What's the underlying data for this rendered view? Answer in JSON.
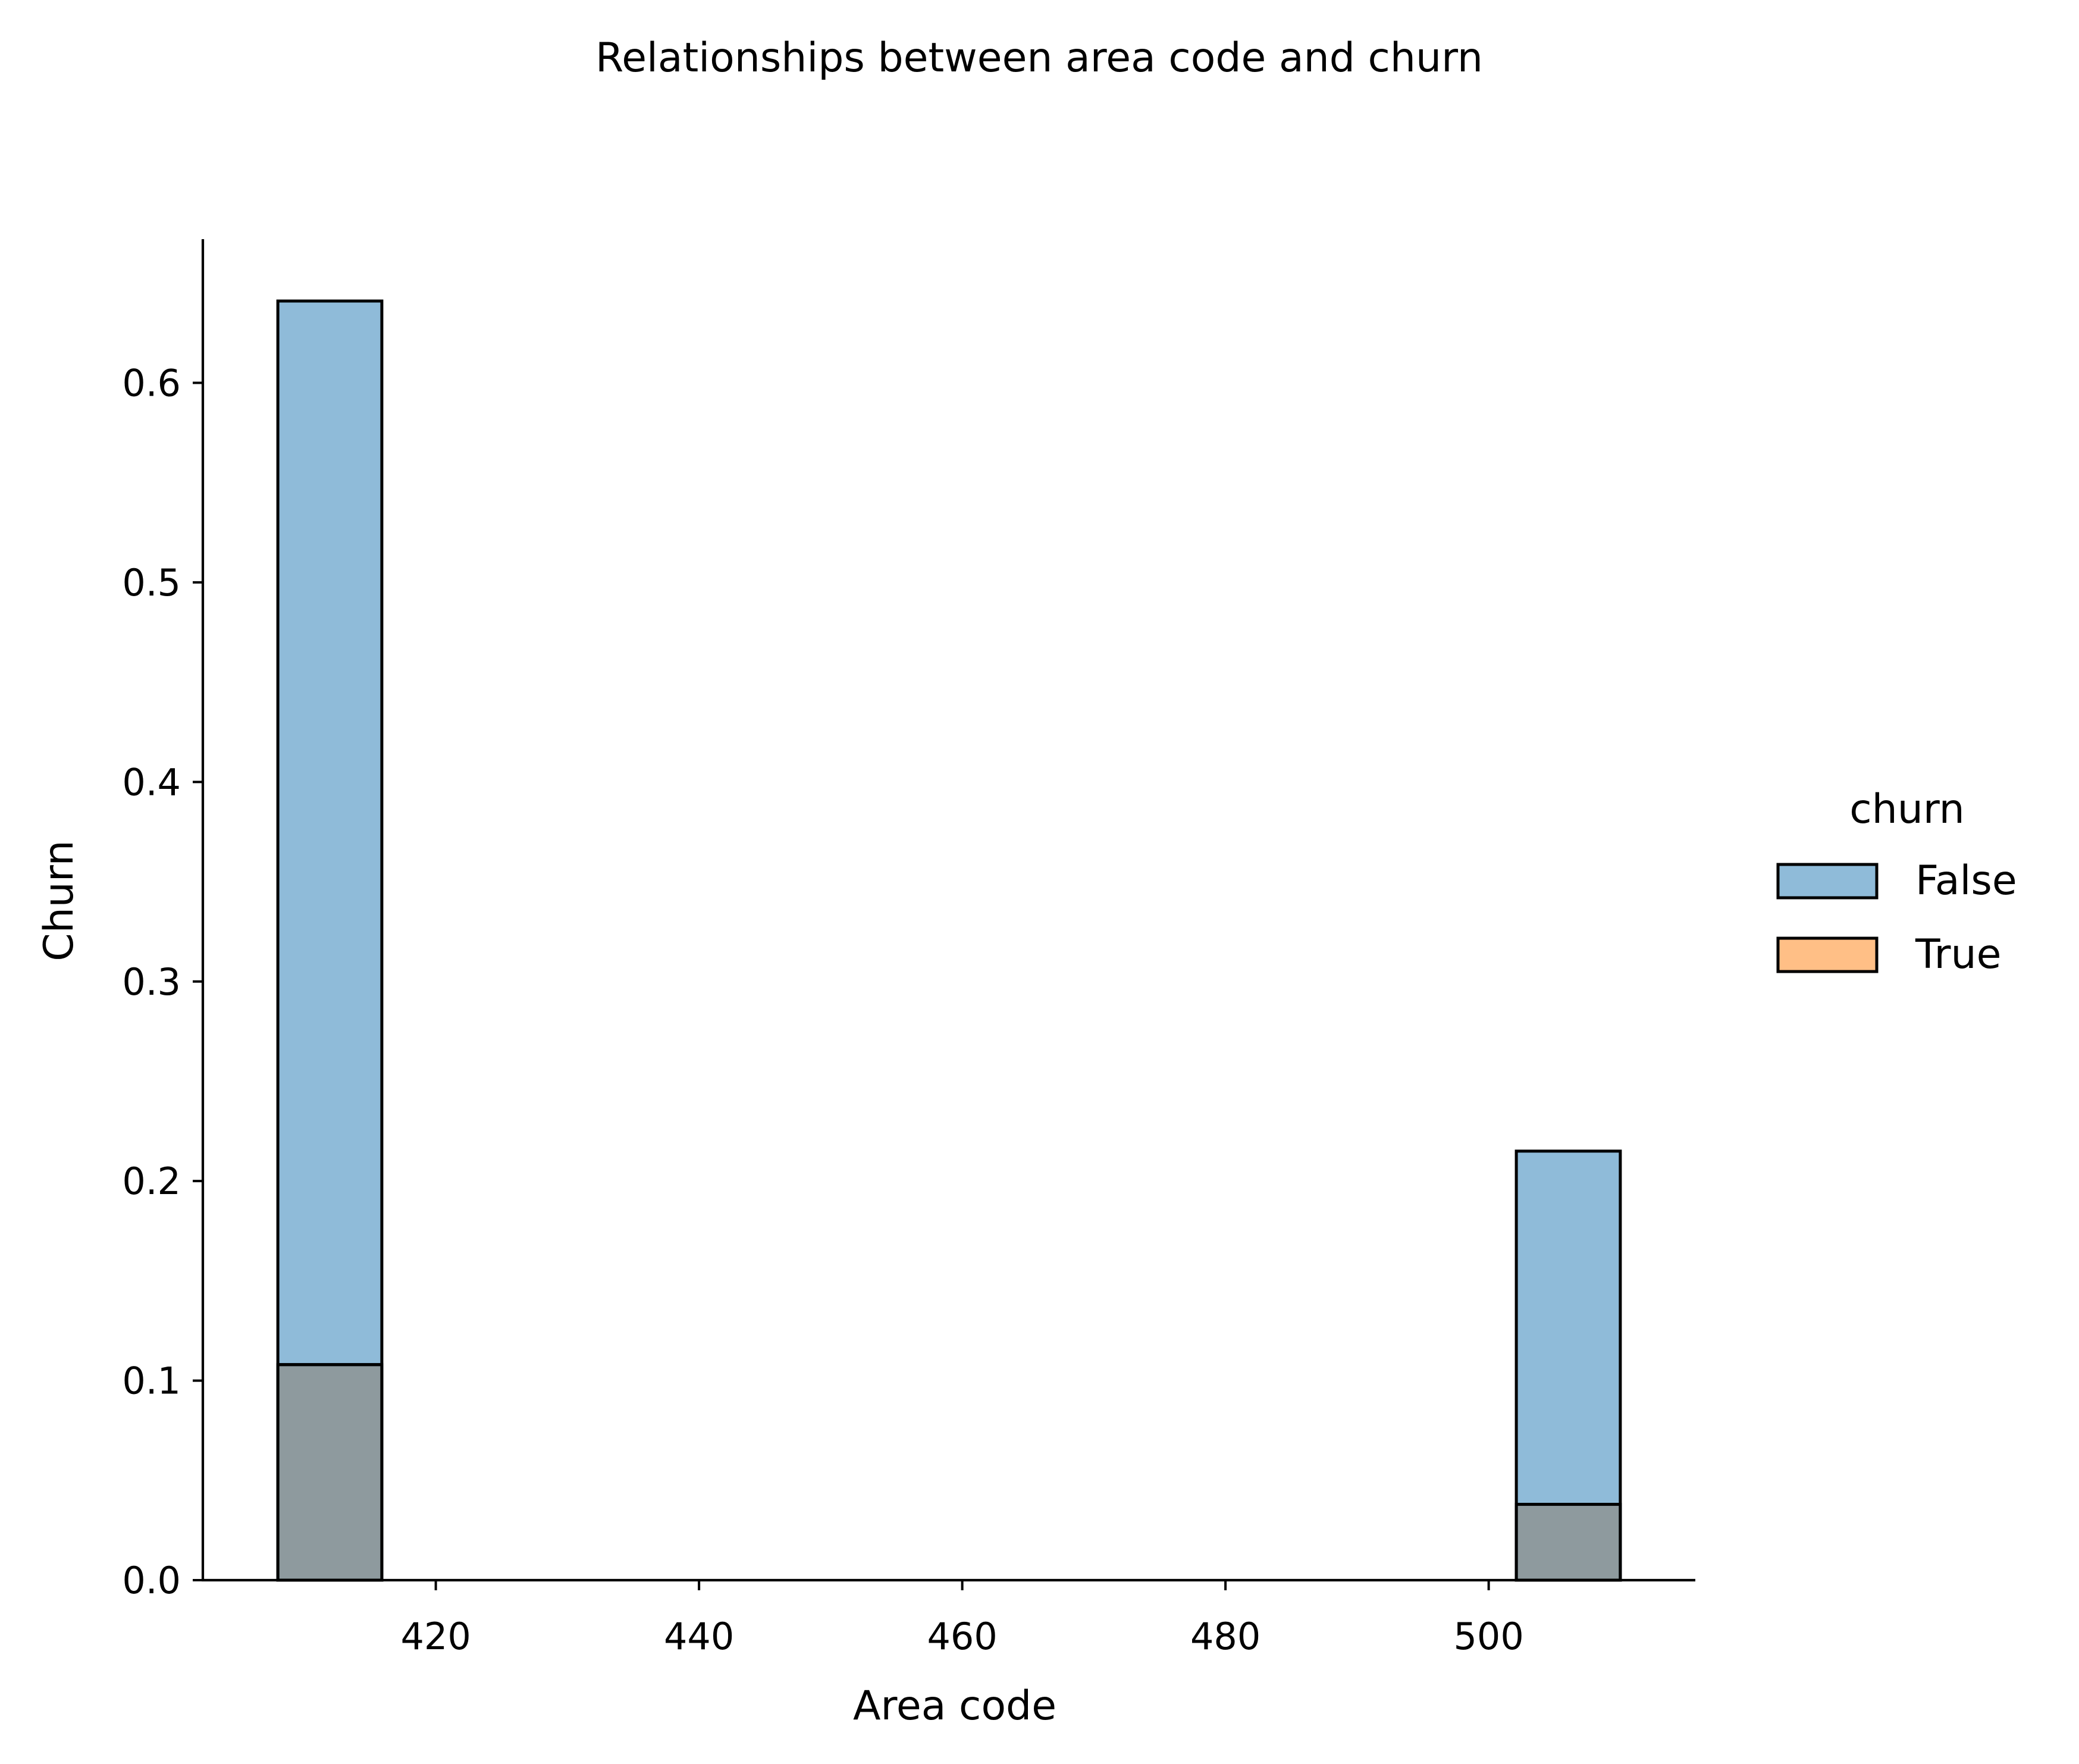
{
  "chart_data": {
    "type": "bar",
    "title": "Relationships between area code and churn",
    "xlabel": "Area code",
    "ylabel": "Churn",
    "xlim": [
      402.3,
      515.7
    ],
    "ylim": [
      0.0,
      0.672
    ],
    "xticks": [
      420,
      440,
      460,
      480,
      500
    ],
    "xtick_labels": [
      "420",
      "440",
      "460",
      "480",
      "500"
    ],
    "yticks": [
      0.0,
      0.1,
      0.2,
      0.3,
      0.4,
      0.5,
      0.6
    ],
    "ytick_labels": [
      "0.0",
      "0.1",
      "0.2",
      "0.3",
      "0.4",
      "0.5",
      "0.6"
    ],
    "legend": {
      "title": "churn",
      "placement": "right",
      "entries": [
        "False",
        "True"
      ]
    },
    "bins": [
      {
        "x0": 408.0,
        "x1": 415.9
      },
      {
        "x0": 502.1,
        "x1": 510.0
      }
    ],
    "series": [
      {
        "name": "False",
        "color": "#1f77b4",
        "values": [
          0.641,
          0.215
        ]
      },
      {
        "name": "True",
        "color": "#ff7f0e",
        "values": [
          0.108,
          0.038
        ]
      }
    ],
    "style": {
      "alpha": 0.5,
      "edge_color": "#000000",
      "overlap_color": "#8e9a9e",
      "grid": false,
      "spines": "left-bottom"
    }
  }
}
